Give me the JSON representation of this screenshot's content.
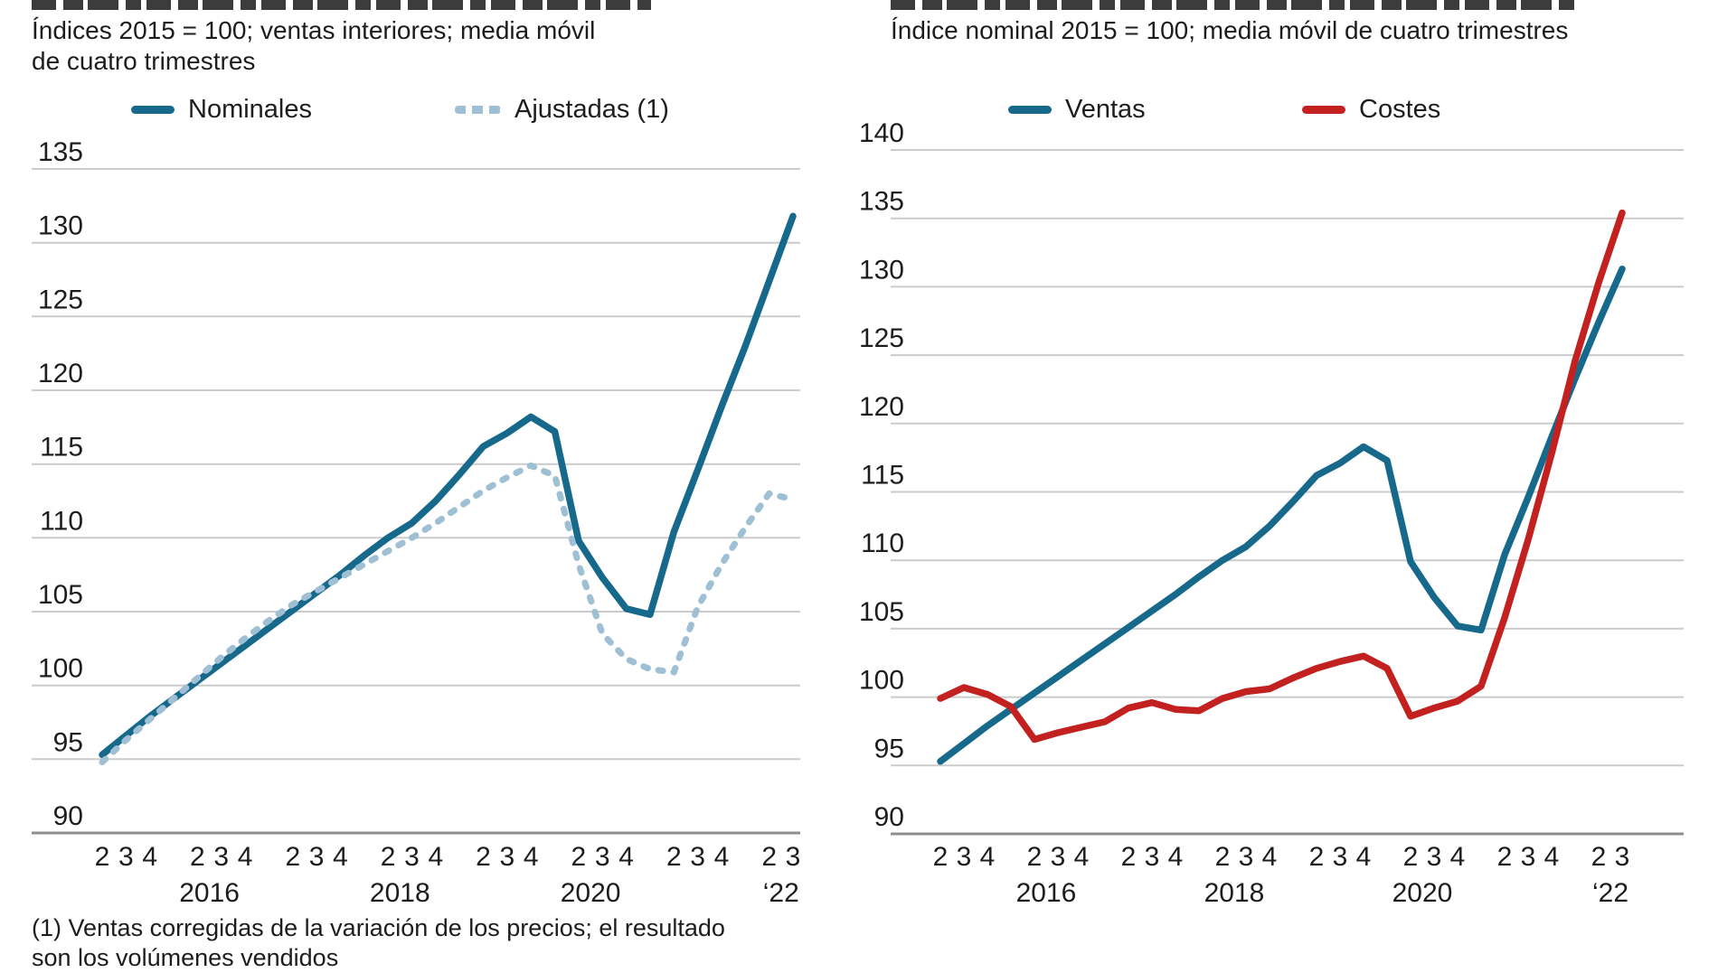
{
  "page": {
    "background": "#ffffff",
    "clipped_top_titles": "partially cut-off bold headline above each chart (only bottom edge of letters visible)"
  },
  "colors": {
    "teal": "#16698b",
    "light_blue": "#9fc0d4",
    "red": "#c2211f",
    "grid": "#cbcbcb",
    "axis": "#8e8e8e",
    "text": "#1d1d1d"
  },
  "chart_data": [
    {
      "type": "line",
      "subtitle": "Índices 2015 = 100; ventas interiores; media móvil\nde cuatro trimestres",
      "footnote": "(1) Ventas corregidas de la variación de los precios; el resultado\nson los volúmenes vendidos",
      "legend_position": "top",
      "grid": true,
      "ylim": [
        90,
        135
      ],
      "ytick_step": 5,
      "x_start": "2015-Q2",
      "x_end": "2022-Q3",
      "x_quarter_labels": [
        "2",
        "3",
        "4",
        "",
        "2",
        "3",
        "4",
        "",
        "2",
        "3",
        "4",
        "",
        "2",
        "3",
        "4",
        "",
        "2",
        "3",
        "4",
        "",
        "2",
        "3",
        "4",
        "",
        "2",
        "3",
        "4",
        "",
        "2",
        "3"
      ],
      "year_labels": [
        {
          "index": 3,
          "label": "2016"
        },
        {
          "index": 11,
          "label": "2018"
        },
        {
          "index": 19,
          "label": "2020"
        },
        {
          "index": 27,
          "label": "‘22"
        }
      ],
      "series": [
        {
          "name": "Nominales",
          "color": "#16698b",
          "dash": false,
          "values": [
            95.3,
            96.6,
            97.9,
            99.1,
            100.3,
            101.5,
            102.7,
            103.9,
            105.1,
            106.3,
            107.5,
            108.8,
            110.0,
            111.0,
            112.5,
            114.3,
            116.2,
            117.1,
            118.2,
            117.2,
            109.8,
            107.3,
            105.2,
            104.8,
            110.4,
            114.6,
            118.9,
            123.0,
            127.4,
            131.8
          ]
        },
        {
          "name": "Ajustadas (1)",
          "color": "#9fc0d4",
          "dash": true,
          "values": [
            94.8,
            96.3,
            97.7,
            99.1,
            100.5,
            101.9,
            103.2,
            104.4,
            105.5,
            106.4,
            107.3,
            108.2,
            109.1,
            110.0,
            111.0,
            112.1,
            113.2,
            114.1,
            114.9,
            114.2,
            108.2,
            103.5,
            101.8,
            101.1,
            100.9,
            105.3,
            108.2,
            110.7,
            113.0,
            112.6
          ]
        }
      ]
    },
    {
      "type": "line",
      "subtitle": "Índice nominal 2015 = 100; media móvil de cuatro trimestres",
      "footnote": "",
      "legend_position": "top",
      "grid": true,
      "ylim": [
        90,
        140
      ],
      "ytick_step": 5,
      "x_start": "2015-Q2",
      "x_end": "2022-Q3",
      "x_quarter_labels": [
        "2",
        "3",
        "4",
        "",
        "2",
        "3",
        "4",
        "",
        "2",
        "3",
        "4",
        "",
        "2",
        "3",
        "4",
        "",
        "2",
        "3",
        "4",
        "",
        "2",
        "3",
        "4",
        "",
        "2",
        "3",
        "4",
        "",
        "2",
        "3"
      ],
      "year_labels": [
        {
          "index": 3,
          "label": "2016"
        },
        {
          "index": 11,
          "label": "2018"
        },
        {
          "index": 19,
          "label": "2020"
        },
        {
          "index": 27,
          "label": "‘22"
        }
      ],
      "series": [
        {
          "name": "Ventas",
          "color": "#16698b",
          "dash": false,
          "values": [
            95.3,
            96.6,
            97.9,
            99.1,
            100.3,
            101.5,
            102.7,
            103.9,
            105.1,
            106.3,
            107.5,
            108.8,
            110.0,
            111.0,
            112.5,
            114.3,
            116.2,
            117.1,
            118.3,
            117.3,
            109.9,
            107.3,
            105.2,
            104.9,
            110.4,
            114.6,
            119.0,
            123.3,
            127.4,
            131.3
          ]
        },
        {
          "name": "Costes",
          "color": "#c2211f",
          "dash": false,
          "values": [
            99.9,
            100.7,
            100.2,
            99.3,
            96.9,
            97.4,
            97.8,
            98.2,
            99.2,
            99.6,
            99.1,
            99.0,
            99.9,
            100.4,
            100.6,
            101.4,
            102.1,
            102.6,
            103.0,
            102.1,
            98.6,
            99.2,
            99.7,
            100.8,
            105.8,
            111.5,
            117.8,
            124.6,
            130.3,
            135.4
          ]
        }
      ]
    }
  ]
}
